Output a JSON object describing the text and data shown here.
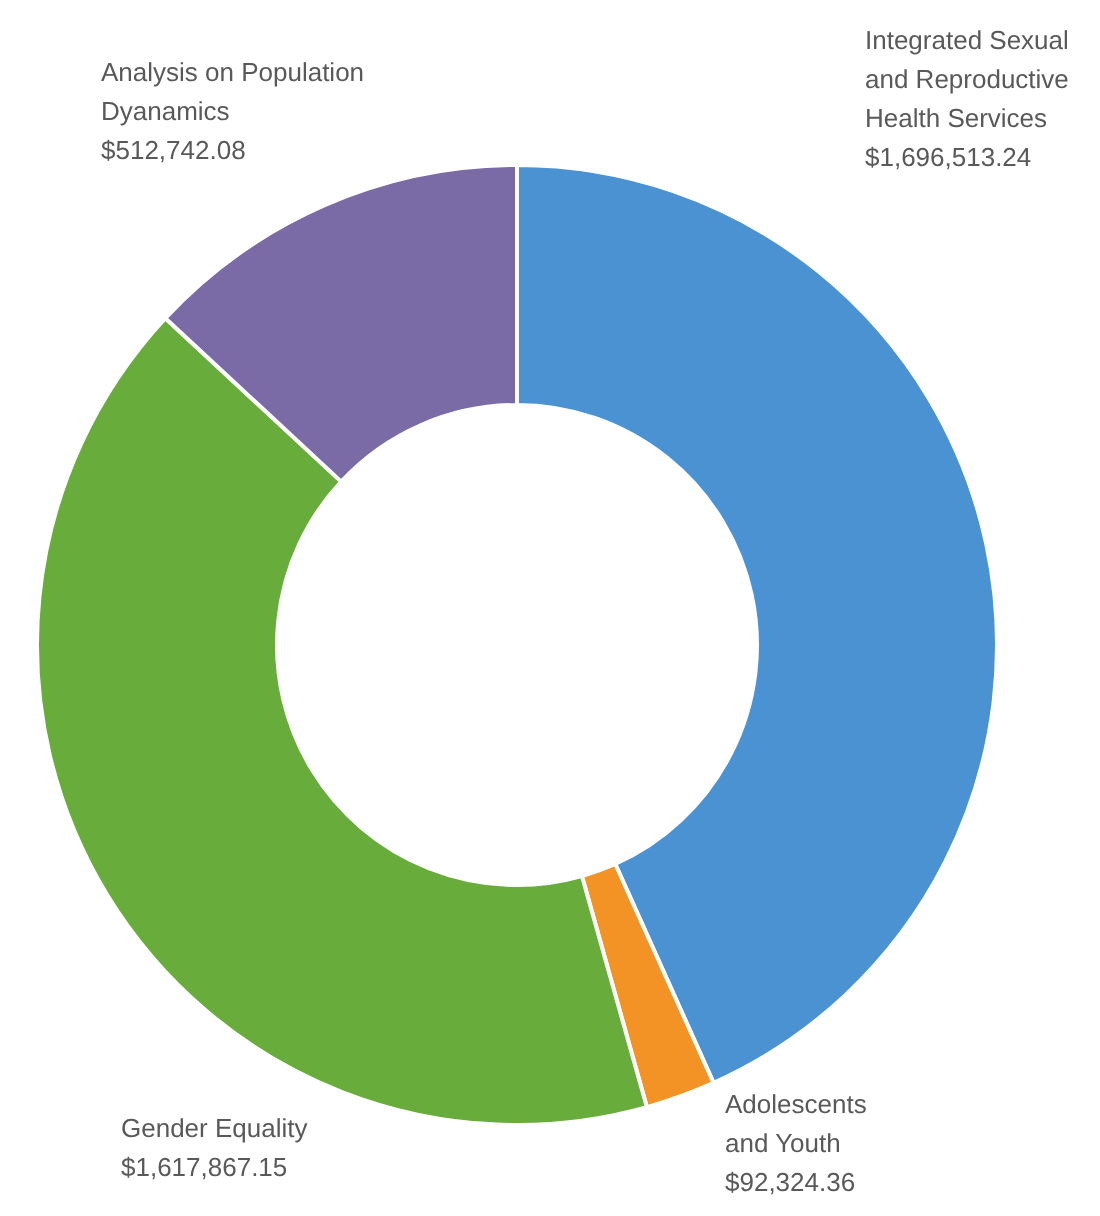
{
  "chart_data": {
    "type": "donut",
    "categories": [
      "Integrated Sexual and Reproductive Health Services",
      "Adolescents and Youth",
      "Gender Equality",
      "Analysis on Population Dyanamics"
    ],
    "values": [
      1696513.24,
      92324.36,
      1617867.15,
      512742.08
    ],
    "colors": [
      "#4a92d2",
      "#f39325",
      "#68ac3c",
      "#7a6aa6"
    ],
    "value_labels": [
      "$1,696,513.24",
      "$92,324.36",
      "$1,617,867.15",
      "$512,742.08"
    ]
  }
}
